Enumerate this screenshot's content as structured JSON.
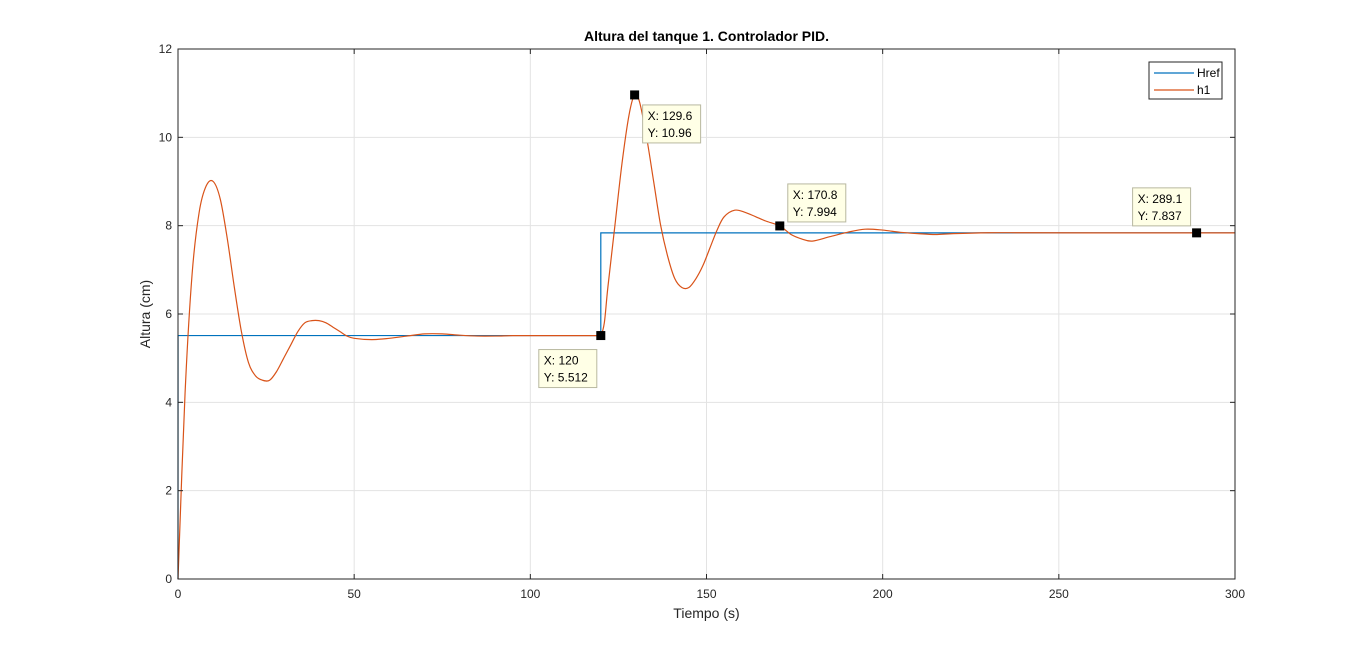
{
  "chart_data": {
    "type": "line",
    "title": "Altura del tanque 1. Controlador PID.",
    "xlabel": "Tiempo (s)",
    "ylabel": "Altura (cm)",
    "xlim": [
      0,
      300
    ],
    "ylim": [
      0,
      12
    ],
    "xticks": [
      0,
      50,
      100,
      150,
      200,
      250,
      300
    ],
    "yticks": [
      0,
      2,
      4,
      6,
      8,
      10,
      12
    ],
    "grid": true,
    "legend_position": "top-right",
    "series": [
      {
        "name": "Href",
        "color": "#0072BD",
        "x": [
          0,
          0.01,
          120,
          120,
          300
        ],
        "y": [
          0,
          5.512,
          5.512,
          7.837,
          7.837
        ]
      },
      {
        "name": "h1",
        "color": "#D95319",
        "x": [
          0,
          2,
          4,
          6,
          8,
          10,
          12,
          14,
          16,
          18,
          20,
          22,
          24,
          26,
          28,
          30,
          32,
          34,
          36,
          38,
          40,
          42,
          44,
          46,
          48,
          50,
          55,
          60,
          65,
          70,
          75,
          80,
          85,
          90,
          95,
          100,
          105,
          110,
          115,
          119,
          120,
          121,
          122,
          124,
          126,
          128,
          129.6,
          131,
          133,
          135,
          137,
          139,
          141,
          143,
          145,
          147,
          149,
          151,
          153,
          155,
          158,
          161,
          164,
          167,
          170.8,
          174,
          177,
          180,
          185,
          190,
          195,
          200,
          205,
          210,
          215,
          220,
          230,
          240,
          260,
          289.1,
          300
        ],
        "y": [
          0,
          4.2,
          6.9,
          8.3,
          8.9,
          9.0,
          8.6,
          7.7,
          6.6,
          5.6,
          4.9,
          4.6,
          4.5,
          4.5,
          4.7,
          5.0,
          5.3,
          5.6,
          5.8,
          5.85,
          5.85,
          5.8,
          5.7,
          5.6,
          5.5,
          5.45,
          5.42,
          5.45,
          5.5,
          5.55,
          5.55,
          5.52,
          5.5,
          5.5,
          5.51,
          5.51,
          5.51,
          5.51,
          5.51,
          5.51,
          5.512,
          5.8,
          6.6,
          8.0,
          9.4,
          10.5,
          10.96,
          10.8,
          10.0,
          9.0,
          8.0,
          7.3,
          6.8,
          6.6,
          6.6,
          6.8,
          7.1,
          7.5,
          7.9,
          8.2,
          8.35,
          8.3,
          8.2,
          8.1,
          7.994,
          7.8,
          7.7,
          7.65,
          7.75,
          7.85,
          7.92,
          7.9,
          7.85,
          7.82,
          7.8,
          7.82,
          7.84,
          7.84,
          7.837,
          7.837,
          7.837
        ]
      }
    ],
    "datatips": [
      {
        "x": 120,
        "y": 5.512,
        "label_x": "X: 120",
        "label_y": "Y: 5.512"
      },
      {
        "x": 129.6,
        "y": 10.96,
        "label_x": "X: 129.6",
        "label_y": "Y: 10.96"
      },
      {
        "x": 170.8,
        "y": 7.994,
        "label_x": "X: 170.8",
        "label_y": "Y: 7.994"
      },
      {
        "x": 289.1,
        "y": 7.837,
        "label_x": "X: 289.1",
        "label_y": "Y: 7.837"
      }
    ]
  }
}
